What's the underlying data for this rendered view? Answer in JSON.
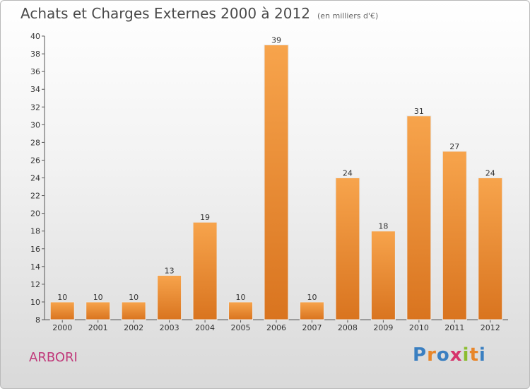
{
  "header": {
    "title": "Achats et Charges Externes 2000 à 2012",
    "subtitle": "(en milliers d'€)"
  },
  "footer": {
    "commune": "ARBORI",
    "logo_text": "Proxiti",
    "logo_colors": [
      "#3a7fc1",
      "#e8862a",
      "#3a7fc1",
      "#d6336c",
      "#8bbd2f",
      "#e8862a",
      "#3a7fc1"
    ]
  },
  "chart_data": {
    "type": "bar",
    "categories": [
      "2000",
      "2001",
      "2002",
      "2003",
      "2004",
      "2005",
      "2006",
      "2007",
      "2008",
      "2009",
      "2010",
      "2011",
      "2012"
    ],
    "values": [
      10,
      10,
      10,
      13,
      19,
      10,
      39,
      10,
      24,
      18,
      31,
      27,
      24
    ],
    "ylim": [
      8,
      40
    ],
    "yticks": [
      8,
      10,
      12,
      14,
      16,
      18,
      20,
      22,
      24,
      26,
      28,
      30,
      32,
      34,
      36,
      38,
      40
    ],
    "grid": false,
    "bar_color_top": "#f7a44c",
    "bar_color_bottom": "#d9741f"
  }
}
